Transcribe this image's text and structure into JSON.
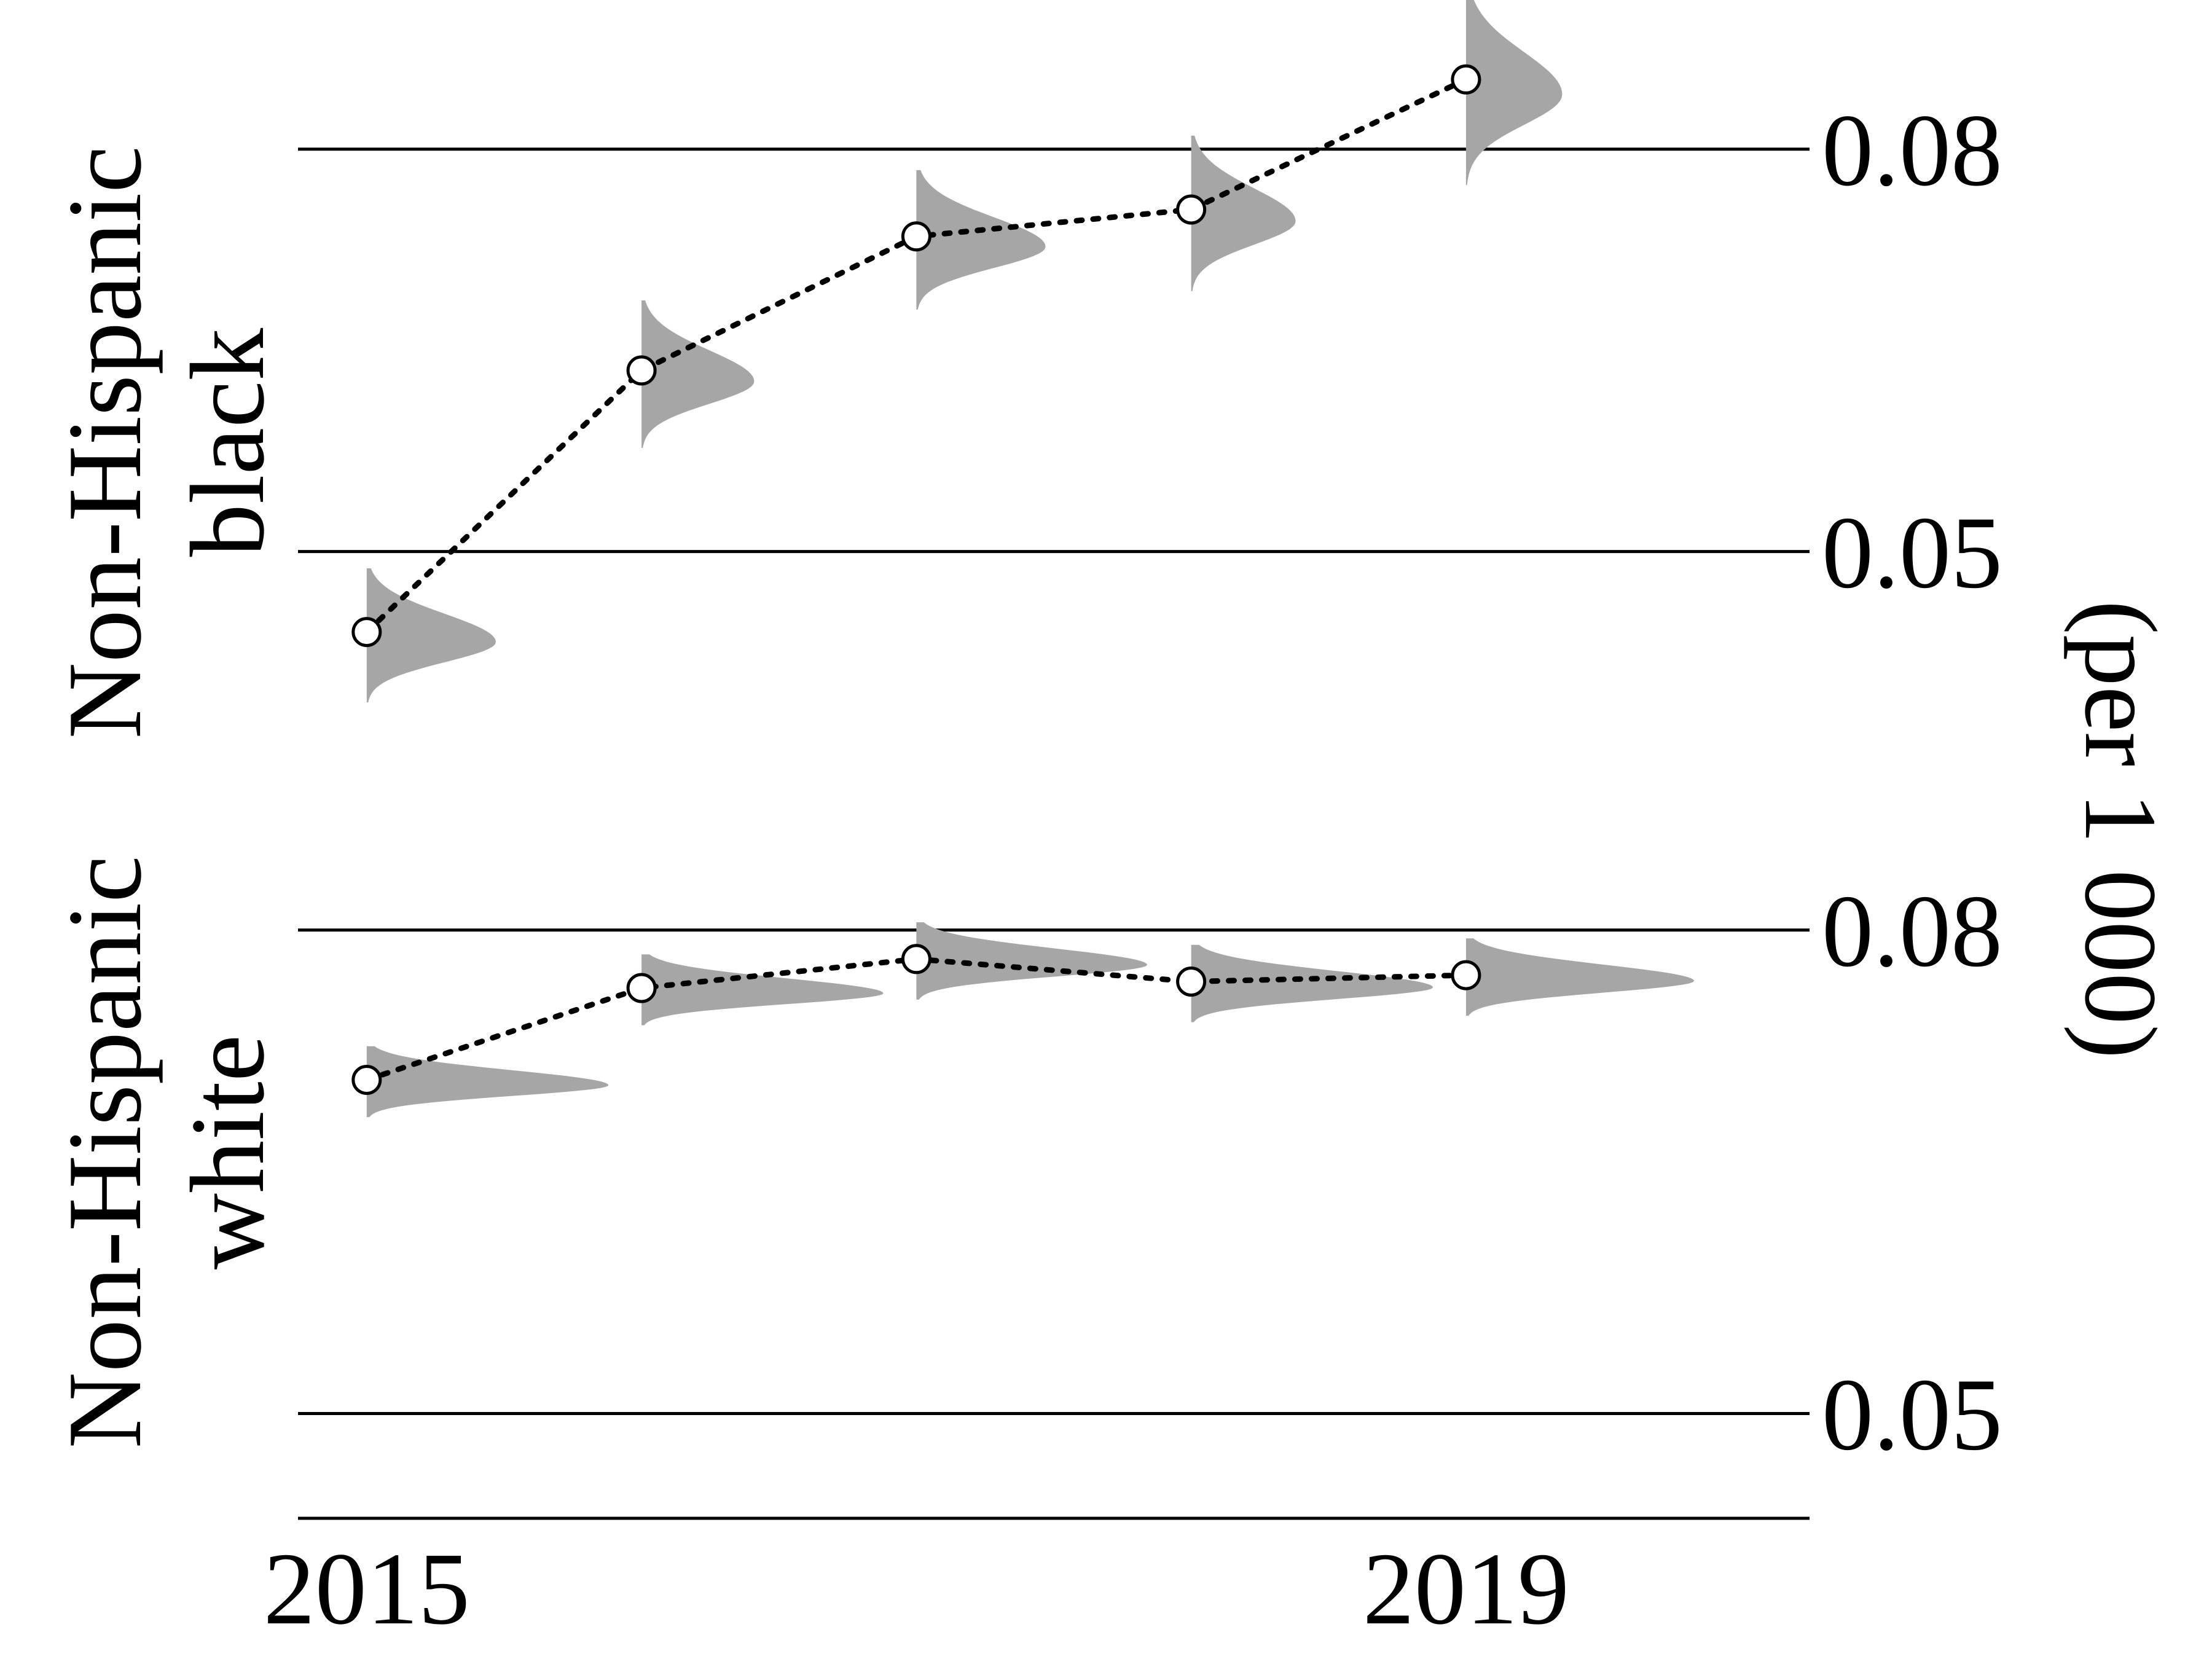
{
  "chart_data": {
    "type": "line",
    "description_type": "dotted line of point estimates with half-violin posterior distributions, two stacked panels",
    "y_axis_label": "(per 1 000)",
    "x_tick_labels": [
      "2015",
      "2019"
    ],
    "x": [
      2015,
      2016,
      2017,
      2018,
      2019
    ],
    "xlim": [
      2014.75,
      2020.25
    ],
    "panels": [
      {
        "label_line1": "Non-Hispanic",
        "label_line2": "black",
        "ylim": [
          0.035,
          0.087
        ],
        "yticks": [
          0.05,
          0.08
        ],
        "ytick_labels": [
          "0.05",
          "0.08"
        ],
        "values": [
          0.044,
          0.0635,
          0.0735,
          0.0755,
          0.0852
        ],
        "distribution_spread": [
          0.005,
          0.0055,
          0.0052,
          0.0058,
          0.0075
        ],
        "distribution_width_years": [
          0.47,
          0.41,
          0.47,
          0.38,
          0.35
        ]
      },
      {
        "label_line1": "Non-Hispanic",
        "label_line2": "white",
        "ylim": [
          0.0435,
          0.087
        ],
        "yticks": [
          0.05,
          0.08
        ],
        "ytick_labels": [
          "0.05",
          "0.08"
        ],
        "values": [
          0.0707,
          0.0764,
          0.0782,
          0.0768,
          0.0772
        ],
        "distribution_spread": [
          0.0022,
          0.0022,
          0.0024,
          0.0024,
          0.0024
        ],
        "distribution_width_years": [
          0.88,
          0.88,
          0.84,
          0.88,
          0.83
        ]
      }
    ],
    "colors": {
      "distribution": "#a6a6a6",
      "line": "#000000",
      "marker_fill": "#ffffff",
      "marker_edge": "#000000",
      "gridline": "#000000"
    },
    "line_style": "dotted",
    "grid": true,
    "legend": "none"
  }
}
